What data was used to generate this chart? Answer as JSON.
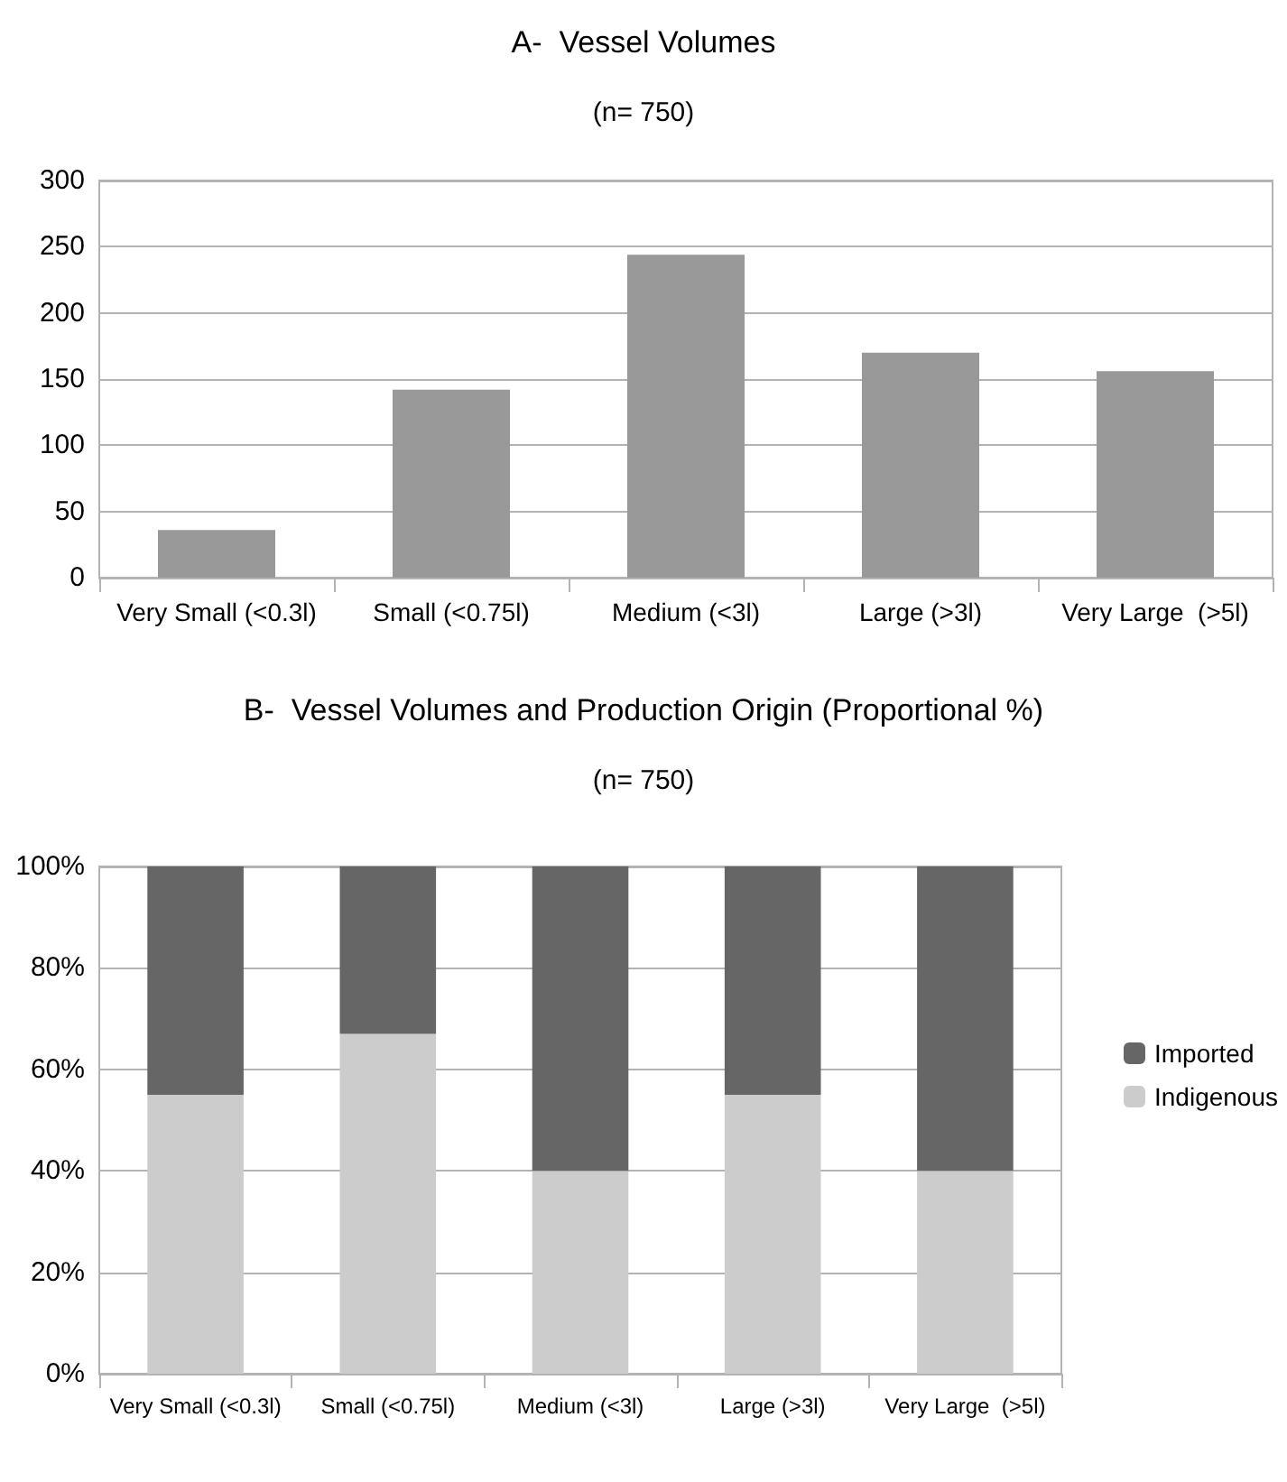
{
  "chart_data": [
    {
      "type": "bar",
      "title": "A-  Vessel Volumes",
      "subtitle": "(n= 750)",
      "categories": [
        "Very Small (<0.3l)",
        "Small (<0.75l)",
        "Medium (<3l)",
        "Large (>3l)",
        "Very Large  (>5l)"
      ],
      "values": [
        36,
        142,
        244,
        170,
        156
      ],
      "color": "#999999",
      "ylim": [
        0,
        300
      ],
      "yticks": [
        0,
        50,
        100,
        150,
        200,
        250,
        300
      ],
      "grid": "y",
      "legend": false
    },
    {
      "type": "bar",
      "title": "B-  Vessel Volumes and Production Origin (Proportional %)",
      "subtitle": "(n= 750)",
      "categories": [
        "Very Small (<0.3l)",
        "Small (<0.75l)",
        "Medium (<3l)",
        "Large (>3l)",
        "Very Large  (>5l)"
      ],
      "stacked": true,
      "series": [
        {
          "name": "Indigenous",
          "color": "#cccccc",
          "values": [
            55,
            67,
            40,
            55,
            40
          ]
        },
        {
          "name": "Imported",
          "color": "#666666",
          "values": [
            45,
            33,
            60,
            45,
            60
          ]
        }
      ],
      "ylim": [
        0,
        100
      ],
      "yticks": [
        {
          "value": 0,
          "label": "0%"
        },
        {
          "value": 20,
          "label": "20%"
        },
        {
          "value": 40,
          "label": "40%"
        },
        {
          "value": 60,
          "label": "60%"
        },
        {
          "value": 80,
          "label": "80%"
        },
        {
          "value": 100,
          "label": "100%"
        }
      ],
      "grid": "y",
      "legend": "right"
    }
  ]
}
